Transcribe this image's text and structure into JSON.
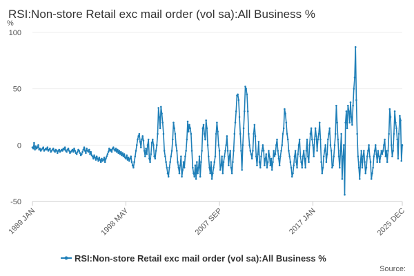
{
  "chart_data": {
    "type": "line",
    "title": "RSI:Non-store Retail exc mail order (vol sa):All Business %",
    "y_label": "%",
    "source_label": "Source:",
    "legend": "bottom",
    "grid": true,
    "ylim": [
      -50,
      100
    ],
    "yticks": [
      -50,
      0,
      50,
      100
    ],
    "categories": [
      "1989 JAN",
      null,
      null,
      null,
      null,
      null,
      null,
      null,
      null,
      null,
      null,
      null,
      null,
      null,
      null,
      null,
      null,
      null,
      null,
      null,
      null,
      null,
      null,
      null,
      null,
      null,
      null,
      null,
      null,
      null,
      null,
      null,
      null,
      null,
      null,
      null,
      null,
      null,
      null,
      null,
      null,
      null,
      null,
      null,
      null,
      null,
      null,
      null,
      null,
      null,
      null,
      null,
      null,
      null,
      null,
      null,
      null,
      null,
      null,
      null,
      null,
      null,
      null,
      null,
      null,
      null,
      null,
      null,
      null,
      null,
      null,
      null,
      null,
      null,
      null,
      null,
      null,
      null,
      null,
      null,
      null,
      null,
      null,
      null,
      null,
      null,
      null,
      null,
      null,
      null,
      null,
      null,
      null,
      null,
      null,
      null,
      null,
      null,
      null,
      null,
      null,
      null,
      null,
      null,
      null,
      null,
      null,
      null,
      null,
      null,
      null,
      null,
      "1998 MAY",
      null,
      null,
      null,
      null,
      null,
      null,
      null,
      null,
      null,
      null,
      null,
      null,
      null,
      null,
      null,
      null,
      null,
      null,
      null,
      null,
      null,
      null,
      null,
      null,
      null,
      null,
      null,
      null,
      null,
      null,
      null,
      null,
      null,
      null,
      null,
      null,
      null,
      null,
      null,
      null,
      null,
      null,
      null,
      null,
      null,
      null,
      null,
      null,
      null,
      null,
      null,
      null,
      null,
      null,
      null,
      null,
      null,
      null,
      null,
      null,
      null,
      null,
      null,
      null,
      null,
      null,
      null,
      null,
      null,
      null,
      null,
      null,
      null,
      null,
      null,
      null,
      null,
      null,
      null,
      null,
      null,
      null,
      null,
      null,
      null,
      null,
      null,
      null,
      null,
      null,
      null,
      null,
      null,
      null,
      null,
      null,
      null,
      null,
      null,
      null,
      null,
      null,
      null,
      null,
      null,
      null,
      null,
      null,
      null,
      null,
      null,
      "2007 SEP",
      null,
      null,
      null,
      null,
      null,
      null,
      null,
      null,
      null,
      null,
      null,
      null,
      null,
      null,
      null,
      null,
      null,
      null,
      null,
      null,
      null,
      null,
      null,
      null,
      null,
      null,
      null,
      null,
      null,
      null,
      null,
      null,
      null,
      null,
      null,
      null,
      null,
      null,
      null,
      null,
      null,
      null,
      null,
      null,
      null,
      null,
      null,
      null,
      null,
      null,
      null,
      null,
      null,
      null,
      null,
      null,
      null,
      null,
      null,
      null,
      null,
      null,
      null,
      null,
      null,
      null,
      null,
      null,
      null,
      null,
      null,
      null,
      null,
      null,
      null,
      null,
      null,
      null,
      null,
      null,
      null,
      null,
      null,
      null,
      null,
      null,
      null,
      null,
      null,
      null,
      null,
      null,
      null,
      null,
      null,
      null,
      null,
      null,
      null,
      null,
      null,
      null,
      null,
      null,
      null,
      null,
      null,
      null,
      null,
      null,
      null,
      "2017 JAN",
      null,
      null,
      null,
      null,
      null,
      null,
      null,
      null,
      null,
      null,
      null,
      null,
      null,
      null,
      null,
      null,
      null,
      null,
      null,
      null,
      null,
      null,
      null,
      null,
      null,
      null,
      null,
      null,
      null,
      null,
      null,
      null,
      null,
      null,
      null,
      null,
      null,
      null,
      null,
      null,
      null,
      null,
      null,
      null,
      null,
      null,
      null,
      null,
      null,
      null,
      null,
      null,
      null,
      null,
      null,
      null,
      null,
      null,
      null,
      null,
      null,
      null,
      null,
      null,
      null,
      null,
      null,
      null,
      null,
      null,
      null,
      null,
      null,
      null,
      null,
      null,
      null,
      null,
      null,
      null,
      null,
      null,
      null,
      null,
      null,
      null,
      null,
      null,
      null,
      null,
      null,
      null,
      null,
      null,
      null,
      null,
      null,
      null,
      null,
      null,
      null,
      null,
      null,
      null,
      null,
      null,
      "2025 DEC"
    ],
    "series": [
      {
        "name": "RSI:Non-store Retail exc mail order (vol sa):All Business %",
        "color": "#1f7fb8",
        "values": [
          -2,
          -3,
          2,
          -4,
          -1,
          -3,
          -2,
          0,
          -4,
          -3,
          -5,
          -4,
          -3,
          -2,
          -5,
          -4,
          -3,
          -4,
          -2,
          -5,
          -4,
          -3,
          -6,
          -5,
          -4,
          -3,
          -5,
          -6,
          -4,
          -5,
          -7,
          -5,
          -4,
          -6,
          -5,
          -4,
          -5,
          -3,
          -4,
          -2,
          -5,
          -6,
          -4,
          -3,
          -5,
          -7,
          -6,
          -5,
          -4,
          -6,
          -3,
          -5,
          -7,
          -8,
          -6,
          -4,
          -5,
          -7,
          -9,
          -8,
          -6,
          -4,
          -2,
          -5,
          -7,
          -3,
          -5,
          -6,
          -4,
          -8,
          -6,
          -9,
          -10,
          -12,
          -9,
          -11,
          -13,
          -10,
          -12,
          -14,
          -11,
          -13,
          -15,
          -12,
          -14,
          -13,
          -11,
          -15,
          -12,
          -10,
          -8,
          -6,
          -3,
          -5,
          -4,
          -6,
          -3,
          -2,
          -4,
          -5,
          -3,
          -6,
          -4,
          -7,
          -5,
          -8,
          -6,
          -9,
          -7,
          -10,
          -8,
          -11,
          -12,
          -9,
          -13,
          -11,
          -14,
          -12,
          -10,
          -15,
          -18,
          -20,
          -15,
          -10,
          -5,
          0,
          5,
          8,
          10,
          3,
          -2,
          5,
          8,
          4,
          -5,
          -10,
          -3,
          -8,
          0,
          5,
          -12,
          -15,
          -8,
          2,
          5,
          0,
          -10,
          -12,
          -5,
          0,
          10,
          33,
          25,
          15,
          34,
          28,
          20,
          10,
          -5,
          -10,
          -15,
          -20,
          -25,
          -28,
          -20,
          -15,
          -10,
          -5,
          5,
          20,
          15,
          10,
          0,
          -5,
          -15,
          -20,
          -25,
          -18,
          -10,
          -28,
          -22,
          -15,
          -20,
          -10,
          -5,
          5,
          21,
          12,
          18,
          15,
          10,
          -5,
          -20,
          -25,
          -28,
          -18,
          -30,
          -15,
          -25,
          -20,
          -10,
          -28,
          -15,
          -5,
          15,
          18,
          10,
          5,
          22,
          15,
          0,
          -10,
          -20,
          -25,
          -15,
          -30,
          -25,
          -20,
          -15,
          -10,
          10,
          20,
          12,
          0,
          -5,
          -22,
          -18,
          -10,
          -25,
          -15,
          -10,
          -5,
          0,
          8,
          -5,
          -18,
          -10,
          -5,
          -20,
          -25,
          -15,
          -5,
          10,
          20,
          30,
          44,
          45,
          40,
          25,
          10,
          -5,
          -22,
          0,
          15,
          30,
          52,
          50,
          45,
          30,
          10,
          0,
          -5,
          -8,
          -12,
          -5,
          10,
          18,
          8,
          -10,
          -18,
          -8,
          3,
          -15,
          -20,
          -10,
          -5,
          0,
          -5,
          -18,
          -12,
          -8,
          -20,
          -15,
          -5,
          -10,
          -18,
          -12,
          -22,
          -15,
          -5,
          -10,
          -8,
          0,
          5,
          -5,
          -12,
          -18,
          -10,
          -5,
          0,
          10,
          15,
          32,
          28,
          20,
          10,
          5,
          -5,
          -10,
          -15,
          -20,
          -28,
          -25,
          -18,
          -10,
          -5,
          -15,
          -20,
          -8,
          0,
          5,
          -10,
          -15,
          -20,
          -10,
          -5,
          -12,
          -20,
          -5,
          5,
          -10,
          -15,
          0,
          10,
          15,
          5,
          0,
          -10,
          5,
          15,
          8,
          -5,
          5,
          10,
          20,
          5,
          -15,
          -25,
          -20,
          -10,
          -5,
          0,
          -15,
          -8,
          5,
          10,
          15,
          0,
          -5,
          -20,
          -18,
          -10,
          0,
          10,
          35,
          20,
          5,
          -10,
          -20,
          -5,
          10,
          -30,
          -10,
          0,
          -44,
          20,
          30,
          15,
          35,
          30,
          20,
          38,
          25,
          18,
          35,
          50,
          60,
          87,
          40,
          10,
          -10,
          -20,
          -30,
          -15,
          -5,
          -20,
          -10,
          -5,
          -15,
          -25,
          -20,
          -10,
          -5,
          0,
          -10,
          -15,
          -30,
          -25,
          -20,
          -10,
          -5,
          0,
          -8,
          -15,
          -5,
          -10,
          -15,
          -10,
          -5,
          -8,
          -5,
          0,
          5,
          -10,
          -5,
          -15,
          -5,
          10,
          32,
          25,
          0,
          -10,
          -5,
          10,
          30,
          20,
          15,
          5,
          -12,
          10,
          26,
          22,
          -14,
          0
        ]
      }
    ]
  }
}
